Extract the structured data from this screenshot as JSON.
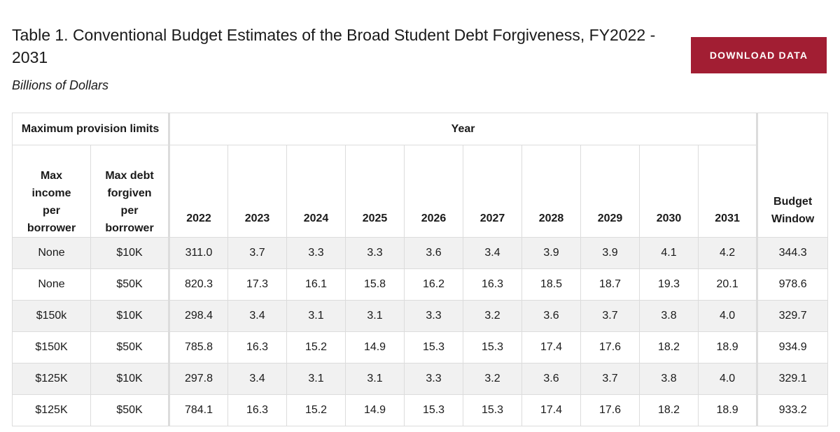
{
  "header": {
    "title": "Table 1. Conventional Budget Estimates of the Broad Student Debt Forgiveness, FY2022 - 2031",
    "subtitle": "Billions of Dollars",
    "download_label": "DOWNLOAD DATA",
    "accent_color": "#a21e33"
  },
  "table": {
    "group_headers": {
      "limits": "Maximum provision limits",
      "year": "Year"
    },
    "columns": {
      "max_income": "Max income per borrower",
      "max_debt": "Max debt forgiven per borrower",
      "years": [
        "2022",
        "2023",
        "2024",
        "2025",
        "2026",
        "2027",
        "2028",
        "2029",
        "2030",
        "2031"
      ],
      "window": "Budget Window"
    },
    "rows": [
      {
        "income": "None",
        "debt": "$10K",
        "values": [
          "311.0",
          "3.7",
          "3.3",
          "3.3",
          "3.6",
          "3.4",
          "3.9",
          "3.9",
          "4.1",
          "4.2"
        ],
        "window": "344.3"
      },
      {
        "income": "None",
        "debt": "$50K",
        "values": [
          "820.3",
          "17.3",
          "16.1",
          "15.8",
          "16.2",
          "16.3",
          "18.5",
          "18.7",
          "19.3",
          "20.1"
        ],
        "window": "978.6"
      },
      {
        "income": "$150k",
        "debt": "$10K",
        "values": [
          "298.4",
          "3.4",
          "3.1",
          "3.1",
          "3.3",
          "3.2",
          "3.6",
          "3.7",
          "3.8",
          "4.0"
        ],
        "window": "329.7"
      },
      {
        "income": "$150K",
        "debt": "$50K",
        "values": [
          "785.8",
          "16.3",
          "15.2",
          "14.9",
          "15.3",
          "15.3",
          "17.4",
          "17.6",
          "18.2",
          "18.9"
        ],
        "window": "934.9"
      },
      {
        "income": "$125K",
        "debt": "$10K",
        "values": [
          "297.8",
          "3.4",
          "3.1",
          "3.1",
          "3.3",
          "3.2",
          "3.6",
          "3.7",
          "3.8",
          "4.0"
        ],
        "window": "329.1"
      },
      {
        "income": "$125K",
        "debt": "$50K",
        "values": [
          "784.1",
          "16.3",
          "15.2",
          "14.9",
          "15.3",
          "15.3",
          "17.4",
          "17.6",
          "18.2",
          "18.9"
        ],
        "window": "933.2"
      }
    ]
  }
}
